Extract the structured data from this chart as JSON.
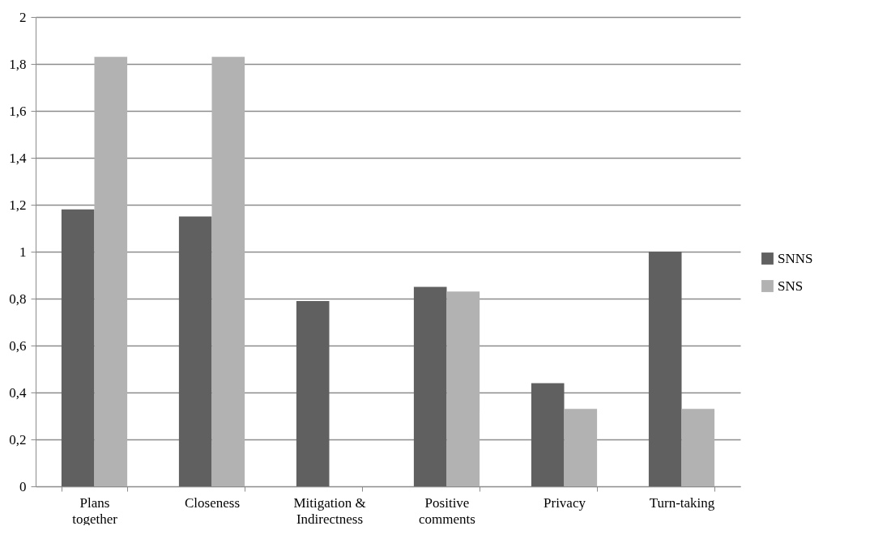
{
  "chart_data": {
    "type": "bar",
    "categories": [
      "Plans together",
      "Closeness",
      "Mitigation & Indirectness",
      "Positive comments",
      "Privacy",
      "Turn-taking"
    ],
    "series": [
      {
        "name": "SNNS",
        "color": "#606060",
        "values": [
          1.18,
          1.15,
          0.79,
          0.85,
          0.44,
          1.0
        ]
      },
      {
        "name": "SNS",
        "color": "#b2b2b2",
        "values": [
          1.83,
          1.83,
          0,
          0.83,
          0.33,
          0.33
        ]
      }
    ],
    "ylim": [
      0,
      2
    ],
    "yticks": [
      {
        "value": 0,
        "label": "0"
      },
      {
        "value": 0.2,
        "label": "0,2"
      },
      {
        "value": 0.4,
        "label": "0,4"
      },
      {
        "value": 0.6,
        "label": "0,6"
      },
      {
        "value": 0.8,
        "label": "0,8"
      },
      {
        "value": 1,
        "label": "1"
      },
      {
        "value": 1.2,
        "label": "1,2"
      },
      {
        "value": 1.4,
        "label": "1,4"
      },
      {
        "value": 1.6,
        "label": "1,6"
      },
      {
        "value": 1.8,
        "label": "1,8"
      },
      {
        "value": 2,
        "label": "2"
      }
    ],
    "grid": "y",
    "legend": "right"
  }
}
